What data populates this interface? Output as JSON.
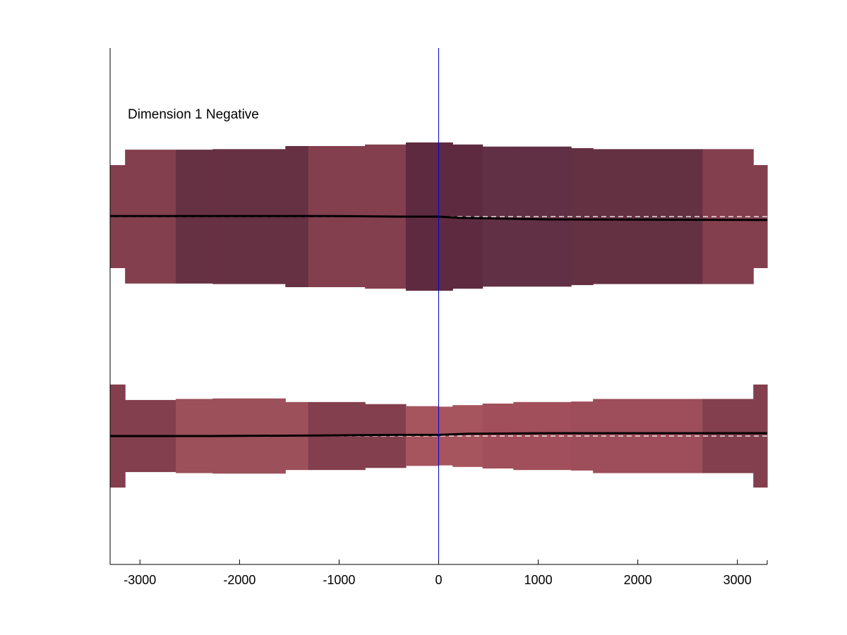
{
  "chart_data": {
    "type": "area",
    "title": "Dimension 1 Negative",
    "xlabel": "",
    "ylabel": "",
    "xlim": [
      -3300,
      3300
    ],
    "x_ticks": [
      -3000,
      -2000,
      -1000,
      0,
      1000,
      2000,
      3000
    ],
    "x_tick_labels": [
      "-3000",
      "-2000",
      "-1000",
      "0",
      "1000",
      "2000",
      "3000"
    ],
    "grid": false,
    "legend": "none",
    "vertical_reference_x": 0,
    "colors": {
      "axis": "#000000",
      "zero_line": "#0000cc",
      "mean_line": "#000000",
      "baseline_dash": "#ffffff"
    },
    "bands": [
      {
        "baseline": 0,
        "segments": [
          {
            "x0": -3300,
            "x1": -3150,
            "width": 1.0,
            "color": "#833f4e"
          },
          {
            "x0": -3150,
            "x1": -2640,
            "width": 1.3,
            "color": "#833f4e"
          },
          {
            "x0": -2640,
            "x1": -2270,
            "width": 1.3,
            "color": "#663142"
          },
          {
            "x0": -2270,
            "x1": -1540,
            "width": 1.31,
            "color": "#663142"
          },
          {
            "x0": -1540,
            "x1": -1310,
            "width": 1.37,
            "color": "#663142"
          },
          {
            "x0": -1310,
            "x1": -740,
            "width": 1.37,
            "color": "#833f4e"
          },
          {
            "x0": -740,
            "x1": -330,
            "width": 1.4,
            "color": "#833f4e"
          },
          {
            "x0": -330,
            "x1": 0,
            "width": 1.44,
            "color": "#5e2a40"
          },
          {
            "x0": 0,
            "x1": 140,
            "width": 1.44,
            "color": "#5e2a40"
          },
          {
            "x0": 140,
            "x1": 440,
            "width": 1.4,
            "color": "#5e2a40"
          },
          {
            "x0": 440,
            "x1": 750,
            "width": 1.36,
            "color": "#613044"
          },
          {
            "x0": 750,
            "x1": 1330,
            "width": 1.36,
            "color": "#613044"
          },
          {
            "x0": 1330,
            "x1": 1550,
            "width": 1.33,
            "color": "#643142"
          },
          {
            "x0": 1550,
            "x1": 2650,
            "width": 1.31,
            "color": "#643142"
          },
          {
            "x0": 2650,
            "x1": 3160,
            "width": 1.31,
            "color": "#833f4e"
          },
          {
            "x0": 3160,
            "x1": 3300,
            "width": 1.0,
            "color": "#833f4e"
          }
        ],
        "mean_line": [
          {
            "x": -3300,
            "y": 0.01
          },
          {
            "x": -1100,
            "y": 0.01
          },
          {
            "x": -400,
            "y": 0.0
          },
          {
            "x": 0,
            "y": 0.0
          },
          {
            "x": 200,
            "y": -0.02
          },
          {
            "x": 1100,
            "y": -0.05
          },
          {
            "x": 3300,
            "y": -0.06
          }
        ]
      },
      {
        "baseline": 0,
        "segments": [
          {
            "x0": -3300,
            "x1": -3150,
            "width": 1.0,
            "color": "#833f4e"
          },
          {
            "x0": -3150,
            "x1": -2640,
            "width": 0.7,
            "color": "#833f4e"
          },
          {
            "x0": -2640,
            "x1": -2270,
            "width": 0.72,
            "color": "#9b505a"
          },
          {
            "x0": -2270,
            "x1": -1540,
            "width": 0.73,
            "color": "#9b505a"
          },
          {
            "x0": -1540,
            "x1": -1310,
            "width": 0.66,
            "color": "#9b505a"
          },
          {
            "x0": -1310,
            "x1": -740,
            "width": 0.66,
            "color": "#833f4e"
          },
          {
            "x0": -740,
            "x1": -330,
            "width": 0.62,
            "color": "#833f4e"
          },
          {
            "x0": -330,
            "x1": 0,
            "width": 0.58,
            "color": "#a6545d"
          },
          {
            "x0": 0,
            "x1": 140,
            "width": 0.57,
            "color": "#a6545d"
          },
          {
            "x0": 140,
            "x1": 440,
            "width": 0.6,
            "color": "#a6545d"
          },
          {
            "x0": 440,
            "x1": 750,
            "width": 0.63,
            "color": "#a14f5a"
          },
          {
            "x0": 750,
            "x1": 1330,
            "width": 0.66,
            "color": "#a14f5a"
          },
          {
            "x0": 1330,
            "x1": 1550,
            "width": 0.67,
            "color": "#9d4e5a"
          },
          {
            "x0": 1550,
            "x1": 2650,
            "width": 0.72,
            "color": "#9d4e5a"
          },
          {
            "x0": 2650,
            "x1": 3160,
            "width": 0.72,
            "color": "#833f4e"
          },
          {
            "x0": 3160,
            "x1": 3300,
            "width": 1.0,
            "color": "#833f4e"
          }
        ],
        "mean_line": [
          {
            "x": -3300,
            "y": 0.0
          },
          {
            "x": -2300,
            "y": 0.0
          },
          {
            "x": -1200,
            "y": 0.01
          },
          {
            "x": -400,
            "y": 0.02
          },
          {
            "x": 0,
            "y": 0.02
          },
          {
            "x": 300,
            "y": 0.04
          },
          {
            "x": 1100,
            "y": 0.05
          },
          {
            "x": 3300,
            "y": 0.05
          }
        ]
      }
    ]
  }
}
